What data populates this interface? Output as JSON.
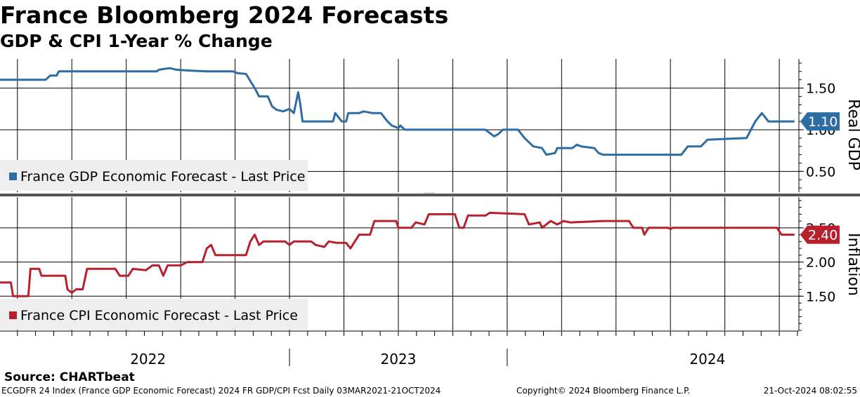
{
  "chart_data": {
    "type": "line",
    "title": "France Bloomberg 2024 Forecasts",
    "subtitle": "GDP & CPI 1-Year % Change",
    "x_range": [
      "2021-03-03",
      "2024-10-21"
    ],
    "x_tick_labels": [
      "2022",
      "2023",
      "2024"
    ],
    "panels": [
      {
        "name": "gdp",
        "ylabel": "Real GDP",
        "ylim": [
          0.25,
          1.85
        ],
        "yticks": [
          0.5,
          1.0,
          1.5
        ],
        "ytick_labels": [
          "0.50",
          "1.00",
          "1.50"
        ],
        "color": "#2e6ca4",
        "legend": "France GDP Economic Forecast - Last Price",
        "last_value": 1.1,
        "last_label": "1.10",
        "points": [
          [
            2021.17,
            1.6
          ],
          [
            2021.38,
            1.6
          ],
          [
            2021.4,
            1.65
          ],
          [
            2021.43,
            1.65
          ],
          [
            2021.44,
            1.7
          ],
          [
            2021.89,
            1.7
          ],
          [
            2021.9,
            1.72
          ],
          [
            2021.95,
            1.74
          ],
          [
            2021.98,
            1.72
          ],
          [
            2022.04,
            1.71
          ],
          [
            2022.12,
            1.7
          ],
          [
            2022.24,
            1.7
          ],
          [
            2022.26,
            1.68
          ],
          [
            2022.3,
            1.67
          ],
          [
            2022.34,
            1.5
          ],
          [
            2022.36,
            1.4
          ],
          [
            2022.4,
            1.4
          ],
          [
            2022.42,
            1.28
          ],
          [
            2022.44,
            1.24
          ],
          [
            2022.47,
            1.22
          ],
          [
            2022.5,
            1.25
          ],
          [
            2022.52,
            1.2
          ],
          [
            2022.54,
            1.45
          ],
          [
            2022.55,
            1.3
          ],
          [
            2022.56,
            1.1
          ],
          [
            2022.62,
            1.1
          ],
          [
            2022.7,
            1.1
          ],
          [
            2022.71,
            1.2
          ],
          [
            2022.74,
            1.1
          ],
          [
            2022.76,
            1.1
          ],
          [
            2022.77,
            1.2
          ],
          [
            2022.82,
            1.2
          ],
          [
            2022.84,
            1.22
          ],
          [
            2022.88,
            1.2
          ],
          [
            2022.92,
            1.2
          ],
          [
            2022.95,
            1.1
          ],
          [
            2022.97,
            1.05
          ],
          [
            2023.0,
            1.02
          ],
          [
            2023.01,
            1.05
          ],
          [
            2023.03,
            1.0
          ],
          [
            2023.4,
            1.0
          ],
          [
            2023.44,
            0.92
          ],
          [
            2023.46,
            0.95
          ],
          [
            2023.48,
            1.0
          ],
          [
            2023.55,
            1.0
          ],
          [
            2023.58,
            0.9
          ],
          [
            2023.6,
            0.85
          ],
          [
            2023.62,
            0.8
          ],
          [
            2023.66,
            0.78
          ],
          [
            2023.68,
            0.7
          ],
          [
            2023.72,
            0.72
          ],
          [
            2023.73,
            0.78
          ],
          [
            2023.8,
            0.78
          ],
          [
            2023.82,
            0.82
          ],
          [
            2023.84,
            0.8
          ],
          [
            2023.9,
            0.78
          ],
          [
            2023.92,
            0.72
          ],
          [
            2023.94,
            0.7
          ],
          [
            2024.3,
            0.7
          ],
          [
            2024.33,
            0.8
          ],
          [
            2024.39,
            0.8
          ],
          [
            2024.42,
            0.88
          ],
          [
            2024.6,
            0.9
          ],
          [
            2024.62,
            1.0
          ],
          [
            2024.64,
            1.1
          ],
          [
            2024.67,
            1.2
          ],
          [
            2024.7,
            1.1
          ],
          [
            2024.82,
            1.1
          ]
        ]
      },
      {
        "name": "cpi",
        "ylabel": "Inflation",
        "ylim": [
          1.0,
          2.95
        ],
        "yticks": [
          1.5,
          2.0,
          2.5
        ],
        "ytick_labels": [
          "1.50",
          "2.00",
          "2.50"
        ],
        "color": "#b8202e",
        "legend": "France CPI Economic Forecast - Last Price",
        "last_value": 2.4,
        "last_label": "2.40",
        "points": [
          [
            2021.17,
            1.7
          ],
          [
            2021.22,
            1.7
          ],
          [
            2021.23,
            1.5
          ],
          [
            2021.3,
            1.5
          ],
          [
            2021.31,
            1.9
          ],
          [
            2021.35,
            1.9
          ],
          [
            2021.36,
            1.8
          ],
          [
            2021.47,
            1.8
          ],
          [
            2021.48,
            1.6
          ],
          [
            2021.5,
            1.55
          ],
          [
            2021.52,
            1.6
          ],
          [
            2021.55,
            1.6
          ],
          [
            2021.57,
            1.9
          ],
          [
            2021.7,
            1.9
          ],
          [
            2021.72,
            1.8
          ],
          [
            2021.76,
            1.8
          ],
          [
            2021.78,
            1.9
          ],
          [
            2021.84,
            1.88
          ],
          [
            2021.87,
            1.95
          ],
          [
            2021.9,
            1.95
          ],
          [
            2021.92,
            1.8
          ],
          [
            2021.94,
            1.95
          ],
          [
            2022.0,
            1.95
          ],
          [
            2022.03,
            2.0
          ],
          [
            2022.1,
            2.0
          ],
          [
            2022.12,
            2.2
          ],
          [
            2022.14,
            2.25
          ],
          [
            2022.16,
            2.1
          ],
          [
            2022.3,
            2.1
          ],
          [
            2022.32,
            2.3
          ],
          [
            2022.34,
            2.4
          ],
          [
            2022.36,
            2.25
          ],
          [
            2022.38,
            2.3
          ],
          [
            2022.48,
            2.3
          ],
          [
            2022.5,
            2.25
          ],
          [
            2022.52,
            2.3
          ],
          [
            2022.6,
            2.3
          ],
          [
            2022.62,
            2.25
          ],
          [
            2022.66,
            2.22
          ],
          [
            2022.68,
            2.3
          ],
          [
            2022.72,
            2.28
          ],
          [
            2022.76,
            2.28
          ],
          [
            2022.78,
            2.2
          ],
          [
            2022.8,
            2.3
          ],
          [
            2022.82,
            2.4
          ],
          [
            2022.87,
            2.4
          ],
          [
            2022.89,
            2.6
          ],
          [
            2022.99,
            2.6
          ],
          [
            2023.0,
            2.5
          ],
          [
            2023.06,
            2.5
          ],
          [
            2023.08,
            2.58
          ],
          [
            2023.12,
            2.55
          ],
          [
            2023.14,
            2.7
          ],
          [
            2023.26,
            2.7
          ],
          [
            2023.28,
            2.5
          ],
          [
            2023.3,
            2.5
          ],
          [
            2023.32,
            2.68
          ],
          [
            2023.4,
            2.68
          ],
          [
            2023.42,
            2.72
          ],
          [
            2023.58,
            2.7
          ],
          [
            2023.6,
            2.55
          ],
          [
            2023.65,
            2.58
          ],
          [
            2023.66,
            2.5
          ],
          [
            2023.7,
            2.6
          ],
          [
            2023.73,
            2.55
          ],
          [
            2023.76,
            2.6
          ],
          [
            2023.79,
            2.58
          ],
          [
            2023.94,
            2.6
          ],
          [
            2024.06,
            2.6
          ],
          [
            2024.08,
            2.5
          ],
          [
            2024.12,
            2.5
          ],
          [
            2024.13,
            2.4
          ],
          [
            2024.15,
            2.5
          ],
          [
            2024.24,
            2.5
          ],
          [
            2024.25,
            2.48
          ],
          [
            2024.26,
            2.5
          ],
          [
            2024.74,
            2.5
          ],
          [
            2024.76,
            2.4
          ],
          [
            2024.82,
            2.4
          ]
        ]
      }
    ]
  },
  "source": "Source: CHARTbeat",
  "footer": {
    "left": "ECGDFR 24 Index (France GDP Economic Forecast) 2024 FR GDP/CPI Fcst  Daily 03MAR2021-21OCT2024",
    "middle": "Copyright© 2024 Bloomberg Finance L.P.",
    "right": "21-Oct-2024 08:02:55"
  }
}
